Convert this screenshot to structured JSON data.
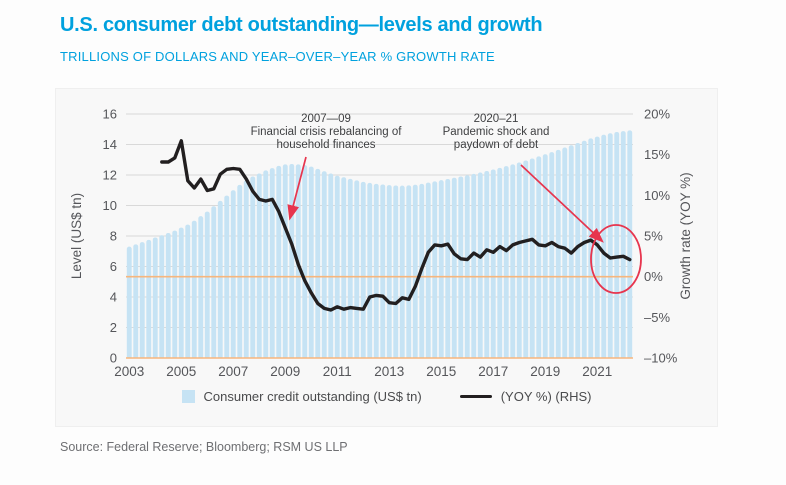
{
  "header": {
    "title": "U.S. consumer debt outstanding—levels and growth",
    "subtitle": "TRILLIONS OF DOLLARS AND YEAR–OVER–YEAR % GROWTH RATE"
  },
  "source_note": "Source: Federal Reserve; Bloomberg; RSM US LLP",
  "colors": {
    "accent_cyan": "#00A1DE",
    "bar_blue": "#C6E3F4",
    "line_black": "#221F20",
    "orange_reference": "#F7B67D",
    "red_highlight": "#E7354E",
    "gridline": "#D9D9D9",
    "axis_text": "#55565A",
    "annotation_text": "#3E3F41"
  },
  "legend": {
    "items": [
      {
        "label": "Consumer credit outstanding (US$ tn)",
        "swatch": "square"
      },
      {
        "label": "(YOY %) (RHS)",
        "swatch": "line"
      }
    ]
  },
  "chart_data": {
    "type": "bar+line combo",
    "left_axis": {
      "label": "Level (US$ tn)",
      "min": 0,
      "max": 16,
      "ticks": [
        0,
        2,
        4,
        6,
        8,
        10,
        12,
        14,
        16
      ]
    },
    "right_axis": {
      "label": "Growth rate (YOY %)",
      "min": -10,
      "max": 20,
      "tick_values": [
        20,
        15,
        10,
        5,
        0,
        -5,
        -10
      ],
      "tick_labels": [
        "20%",
        "15%",
        "10%",
        "5%",
        "0%",
        "–5%",
        "–10%"
      ]
    },
    "x_axis": {
      "tick_years": [
        2003,
        2005,
        2007,
        2009,
        2011,
        2013,
        2015,
        2017,
        2019,
        2021
      ],
      "domain_min": 2003,
      "domain_max": 2022.5
    },
    "grid": "horizontal only",
    "legend_position": "bottom center",
    "reference_lines": [
      {
        "axis": "left",
        "value": 0,
        "color": "#F7B67D"
      },
      {
        "axis": "right",
        "value": 0,
        "color": "#F7B67D"
      }
    ],
    "series": [
      {
        "name": "Consumer credit outstanding (US$ tn)",
        "type": "bar",
        "axis": "left",
        "color": "#C6E3F4",
        "x_start": 2003.0,
        "x_step": 0.25,
        "values": [
          7.3,
          7.45,
          7.6,
          7.75,
          7.9,
          8.05,
          8.2,
          8.35,
          8.55,
          8.75,
          9.0,
          9.3,
          9.6,
          9.95,
          10.3,
          10.65,
          11.0,
          11.35,
          11.65,
          11.9,
          12.1,
          12.3,
          12.45,
          12.6,
          12.7,
          12.72,
          12.7,
          12.65,
          12.55,
          12.4,
          12.25,
          12.1,
          11.95,
          11.85,
          11.75,
          11.65,
          11.55,
          11.48,
          11.42,
          11.38,
          11.34,
          11.31,
          11.3,
          11.32,
          11.36,
          11.42,
          11.5,
          11.58,
          11.66,
          11.74,
          11.82,
          11.9,
          11.98,
          12.07,
          12.16,
          12.26,
          12.36,
          12.47,
          12.58,
          12.7,
          12.82,
          12.95,
          13.08,
          13.22,
          13.36,
          13.5,
          13.65,
          13.8,
          13.95,
          14.1,
          14.25,
          14.4,
          14.52,
          14.64,
          14.74,
          14.82,
          14.88,
          14.93
        ]
      },
      {
        "name": "(YOY %) (RHS)",
        "type": "line",
        "axis": "right",
        "color": "#221F20",
        "x_start": 2004.25,
        "x_step": 0.25,
        "values": [
          14.1,
          14.1,
          14.6,
          16.7,
          11.8,
          10.9,
          12.0,
          10.6,
          10.8,
          12.6,
          13.2,
          13.3,
          13.2,
          12.0,
          10.5,
          9.5,
          9.3,
          9.5,
          8.0,
          6.0,
          4.0,
          1.5,
          -0.5,
          -2.0,
          -3.3,
          -3.9,
          -4.1,
          -3.7,
          -4.0,
          -3.8,
          -3.9,
          -4.0,
          -2.5,
          -2.3,
          -2.4,
          -3.2,
          -3.3,
          -2.6,
          -2.8,
          -1.2,
          1.0,
          3.0,
          3.9,
          3.8,
          4.0,
          2.8,
          2.2,
          2.1,
          2.9,
          2.4,
          3.3,
          3.0,
          3.7,
          3.2,
          3.9,
          4.2,
          4.4,
          4.6,
          3.9,
          3.8,
          4.2,
          3.7,
          3.5,
          2.9,
          3.7,
          4.2,
          4.5,
          3.9,
          2.9,
          2.3,
          2.4,
          2.5,
          2.1
        ]
      }
    ],
    "annotations": [
      {
        "title": "2007—09",
        "lines": [
          "Financial crisis rebalancing of",
          "household finances"
        ]
      },
      {
        "title": "2020–21",
        "lines": [
          "Pandemic shock and",
          "paydown of debt"
        ]
      }
    ],
    "highlight": "red ellipse around 2021–22 end of YOY line with arrow from pandemic annotation"
  }
}
